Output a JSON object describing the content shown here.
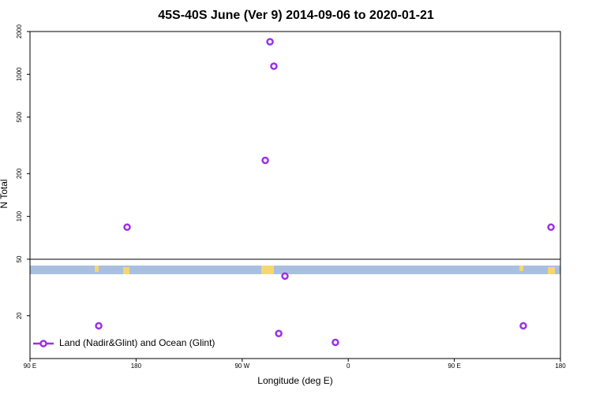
{
  "chart_data": {
    "type": "scatter",
    "title": "45S-40S June (Ver 9)   2014-09-06 to 2020-01-21",
    "x_label": "Longitude (deg E)",
    "y_label": "N Total",
    "log_y": true,
    "xlim": [
      90,
      540
    ],
    "xticks": [
      {
        "value": 90,
        "label": "90 E"
      },
      180,
      {
        "value": 270,
        "label": "90 W"
      },
      {
        "value": 360,
        "label": "0"
      },
      {
        "value": 450,
        "label": "90 E"
      },
      {
        "value": 540,
        "label": "180"
      }
    ],
    "ylim": [
      10,
      2000
    ],
    "yticks": [
      20,
      50,
      100,
      200,
      500,
      1000,
      2000
    ],
    "legend": "bottom-left",
    "series": [
      {
        "name": "Land (Nadir&Glint) and Ocean (Glint)",
        "color": "#9b30e8",
        "x": [
          148.3,
          172.4,
          293.6,
          296.9,
          289.6,
          306.3,
          301,
          349.1,
          508.5,
          532
        ],
        "values": [
          17,
          84,
          1694,
          1140,
          248,
          38,
          15,
          13,
          17,
          84
        ]
      }
    ]
  }
}
